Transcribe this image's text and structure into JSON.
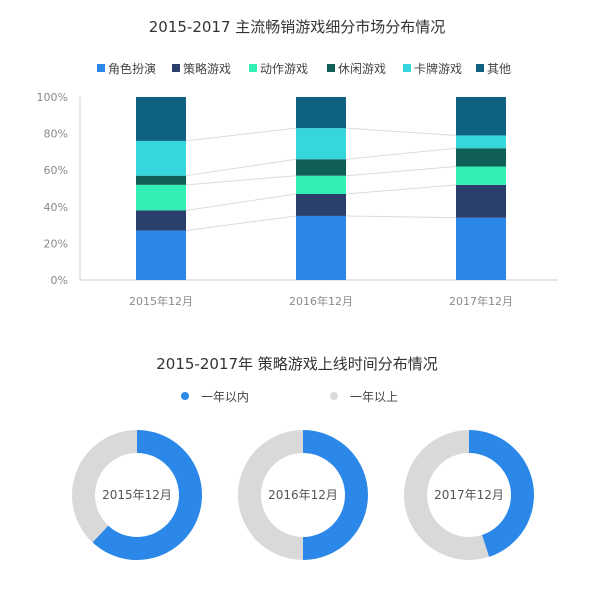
{
  "chart_data": [
    {
      "type": "bar",
      "stacked": true,
      "title": "2015-2017 主流畅销游戏细分市场分布情况",
      "categories": [
        "2015年12月",
        "2016年12月",
        "2017年12月"
      ],
      "series": [
        {
          "name": "角色扮演",
          "color": "#2b87e8",
          "values": [
            27,
            35,
            34
          ]
        },
        {
          "name": "策略游戏",
          "color": "#2b3f6b",
          "values": [
            11,
            12,
            18
          ]
        },
        {
          "name": "动作游戏",
          "color": "#33efb6",
          "values": [
            14,
            10,
            10
          ]
        },
        {
          "name": "休闲游戏",
          "color": "#0f5f57",
          "values": [
            5,
            9,
            10
          ]
        },
        {
          "name": "卡牌游戏",
          "color": "#36d6dd",
          "values": [
            19,
            17,
            7
          ]
        },
        {
          "name": "其他",
          "color": "#0f6182",
          "values": [
            24,
            17,
            21
          ]
        }
      ],
      "y_ticks": [
        "0%",
        "20%",
        "40%",
        "60%",
        "80%",
        "100%"
      ],
      "ylim": [
        0,
        100
      ],
      "legend_position": "top",
      "grid": false,
      "connector_lines": true
    },
    {
      "type": "pie",
      "variant": "donut",
      "title": "2015-2017年 策略游戏上线时间分布情况",
      "legend": [
        {
          "name": "一年以内",
          "color": "#2b87e8"
        },
        {
          "name": "一年以上",
          "color": "#d9d9d9"
        }
      ],
      "charts": [
        {
          "label": "2015年12月",
          "values": [
            62,
            38
          ]
        },
        {
          "label": "2016年12月",
          "values": [
            50,
            50
          ]
        },
        {
          "label": "2017年12月",
          "values": [
            45,
            55
          ]
        }
      ],
      "legend_position": "top"
    }
  ]
}
